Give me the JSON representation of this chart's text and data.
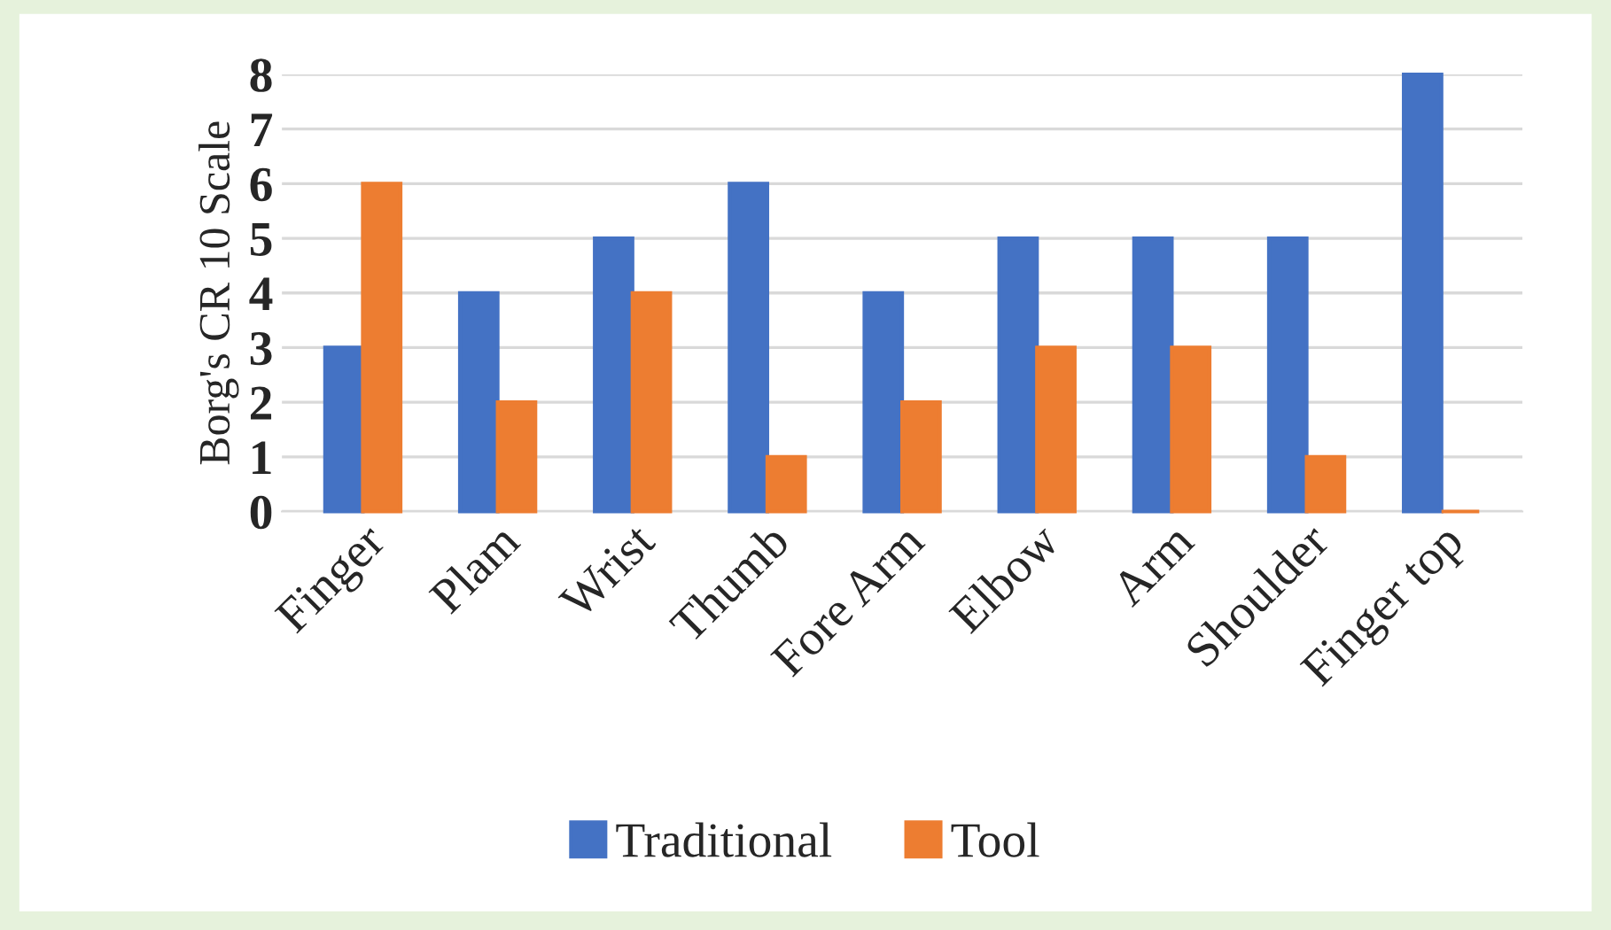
{
  "chart_data": {
    "type": "bar",
    "ylabel": "Borg's CR 10 Scale",
    "categories": [
      "Finger",
      "Plam",
      "Wrist",
      "Thumb",
      "Fore Arm",
      "Elbow",
      "Arm",
      "Shoulder",
      "Finger top"
    ],
    "series": [
      {
        "name": "Traditional",
        "color": "#4472c4",
        "values": [
          3,
          4,
          5,
          6,
          4,
          5,
          5,
          5,
          8
        ]
      },
      {
        "name": "Tool",
        "color": "#ed7d31",
        "values": [
          6,
          2,
          4,
          1,
          2,
          3,
          3,
          1,
          0
        ]
      }
    ],
    "ylim": [
      0,
      8
    ],
    "yticks": [
      0,
      1,
      2,
      3,
      4,
      5,
      6,
      7,
      8
    ],
    "grid": "y",
    "legend": "bottom"
  }
}
